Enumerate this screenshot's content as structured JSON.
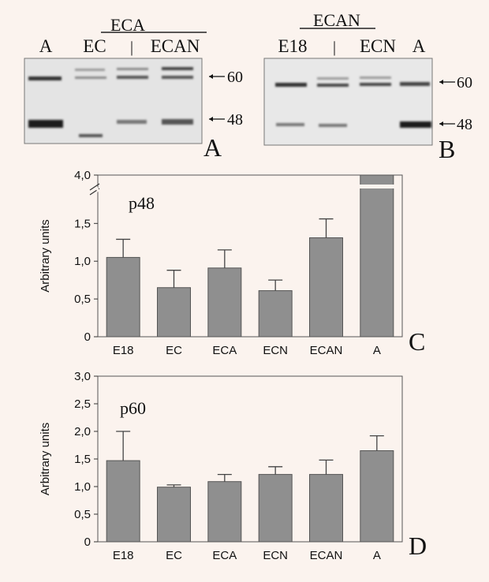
{
  "blots": {
    "A": {
      "header": "ECA",
      "lane_labels": [
        "A",
        "EC",
        "ECAN"
      ],
      "divider": "|",
      "markers": [
        "60",
        "48"
      ],
      "panel_letter": "A"
    },
    "B": {
      "header": "ECAN",
      "lane_labels": [
        "E18",
        "ECN",
        "A"
      ],
      "divider": "|",
      "markers": [
        "60",
        "48"
      ],
      "panel_letter": "B"
    }
  },
  "colors": {
    "bar": "#8f8f8f",
    "background": "#fbf3ee",
    "blot": "#e6e6e6"
  },
  "chart_data": [
    {
      "type": "bar",
      "panel_letter": "C",
      "title": "p48",
      "xlabel": "",
      "ylabel": "Arbitrary units",
      "categories": [
        "E18",
        "EC",
        "ECA",
        "ECN",
        "ECAN",
        "A"
      ],
      "values": [
        1.05,
        0.65,
        0.91,
        0.61,
        1.31,
        4.0
      ],
      "errors": [
        0.24,
        0.23,
        0.24,
        0.14,
        0.25,
        0
      ],
      "ylim": [
        0,
        1.9
      ],
      "yticks": [
        "0",
        "0,5",
        "1,0",
        "1,5"
      ],
      "ybreak_label": "4,0",
      "axis_break": true,
      "grid": false
    },
    {
      "type": "bar",
      "panel_letter": "D",
      "title": "p60",
      "xlabel": "",
      "ylabel": "Arbitrary units",
      "categories": [
        "E18",
        "EC",
        "ECA",
        "ECN",
        "ECAN",
        "A"
      ],
      "values": [
        1.47,
        0.99,
        1.09,
        1.22,
        1.22,
        1.65
      ],
      "errors": [
        0.53,
        0.04,
        0.13,
        0.14,
        0.26,
        0.27
      ],
      "ylim": [
        0,
        3.0
      ],
      "yticks": [
        "0",
        "0,5",
        "1,0",
        "1,5",
        "2,0",
        "2,5",
        "3,0"
      ],
      "grid": false
    }
  ]
}
